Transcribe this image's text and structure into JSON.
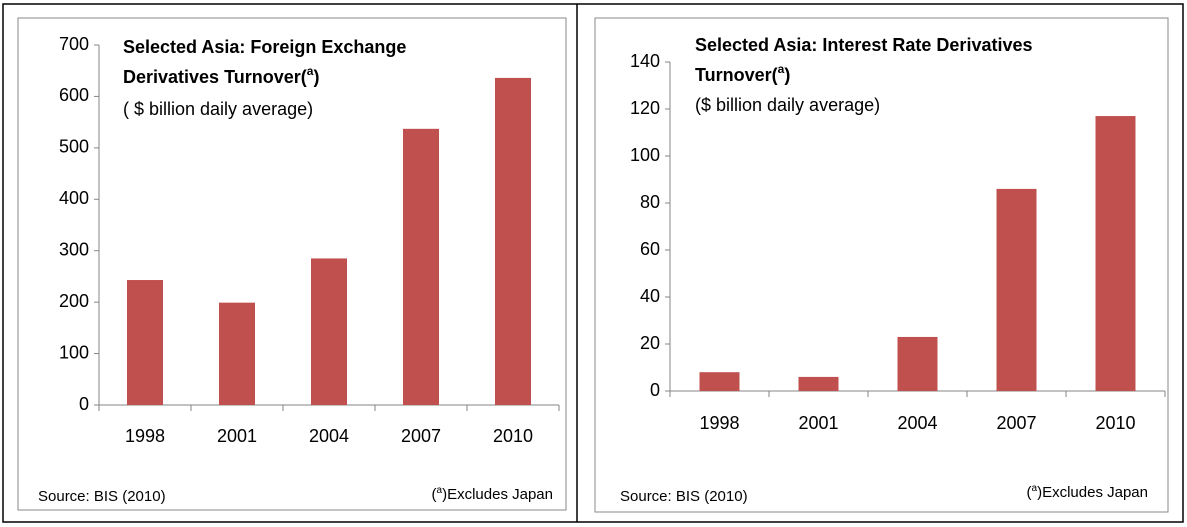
{
  "chart_data": [
    {
      "type": "bar",
      "title": {
        "line1": "Selected Asia: Foreign Exchange",
        "line2": "Derivatives Turnover(",
        "superscript": "a",
        "close": ")"
      },
      "subtitle": "( $ billion daily average)",
      "categories": [
        "1998",
        "2001",
        "2004",
        "2007",
        "2010"
      ],
      "values": [
        243,
        199,
        285,
        537,
        636
      ],
      "color": "#c0504d",
      "ylim": [
        0,
        700
      ],
      "yticks": [
        0,
        100,
        200,
        300,
        400,
        500,
        600,
        700
      ],
      "source": "Source: BIS (2010)",
      "footnote": {
        "open": "(",
        "superscript": "a",
        "text": ")Excludes Japan"
      }
    },
    {
      "type": "bar",
      "title": {
        "line1": "Selected Asia: Interest Rate Derivatives",
        "line2": "Turnover(",
        "superscript": "a",
        "close": ")"
      },
      "subtitle": " ($ billion daily average)",
      "categories": [
        "1998",
        "2001",
        "2004",
        "2007",
        "2010"
      ],
      "values": [
        8,
        6,
        23,
        86,
        117
      ],
      "color": "#c0504d",
      "ylim": [
        0,
        140
      ],
      "yticks": [
        0,
        20,
        40,
        60,
        80,
        100,
        120,
        140
      ],
      "source": "Source: BIS (2010)",
      "footnote": {
        "open": "(",
        "superscript": "a",
        "text": ")Excludes Japan"
      }
    }
  ]
}
